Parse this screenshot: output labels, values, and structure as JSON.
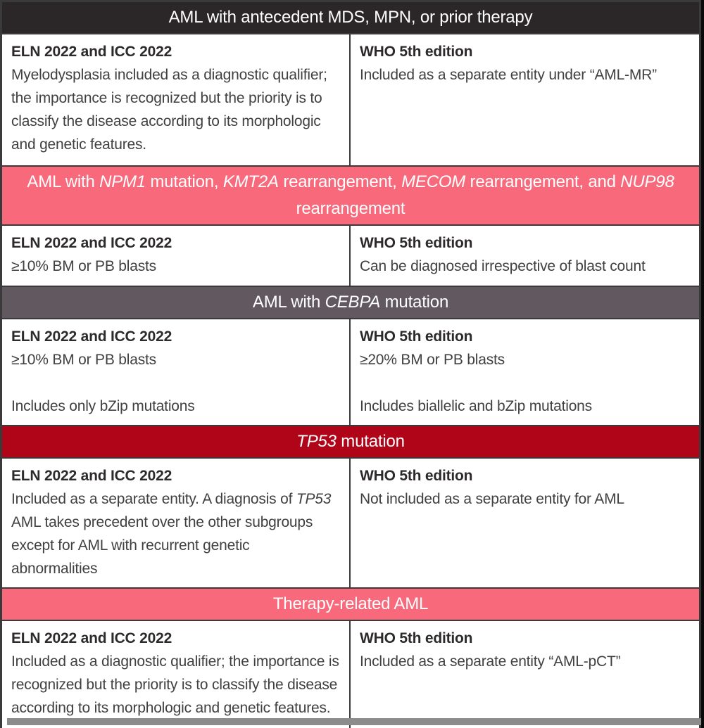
{
  "colors": {
    "dark_header_bg": "#2b2728",
    "pink_header_bg": "#f7697b",
    "mauve_header_bg": "#615860",
    "red_header_bg": "#b00419",
    "border": "#3a3a3a",
    "header_text": "#ffffff",
    "body_text": "#413f40",
    "cell_bg": "#ffffff",
    "shadow": "#8c8c8c"
  },
  "column_headings": {
    "left": "ELN 2022 and ICC 2022",
    "right": "WHO 5th edition"
  },
  "sections": [
    {
      "id": "antecedent-mds-mpn-prior-therapy",
      "theme": "dark",
      "title": [
        {
          "t": "AML with antecedent MDS, MPN, or prior therapy"
        }
      ],
      "left": [
        [
          {
            "t": "Myelodysplasia included as a diagnostic qualifier; the importance is recognized but the priority is to classify the disease according to its morphologic and genetic features."
          }
        ]
      ],
      "right": [
        [
          {
            "t": "Included as a separate entity under “AML-MR”"
          }
        ]
      ]
    },
    {
      "id": "npm1-kmt2a-mecom-nup98",
      "theme": "pink",
      "title": [
        {
          "t": "AML with "
        },
        {
          "t": "NPM1",
          "i": true
        },
        {
          "t": " mutation, "
        },
        {
          "t": "KMT2A",
          "i": true
        },
        {
          "t": " rearrangement, "
        },
        {
          "t": "MECOM",
          "i": true
        },
        {
          "t": " rearrangement, and "
        },
        {
          "t": "NUP98",
          "i": true
        },
        {
          "t": " rearrangement"
        }
      ],
      "left": [
        [
          {
            "t": "≥10% BM or PB blasts"
          }
        ]
      ],
      "right": [
        [
          {
            "t": "Can be diagnosed irrespective of blast count"
          }
        ]
      ]
    },
    {
      "id": "cebpa-mutation",
      "theme": "mauve",
      "title": [
        {
          "t": "AML with "
        },
        {
          "t": "CEBPA",
          "i": true
        },
        {
          "t": " mutation"
        }
      ],
      "left": [
        [
          {
            "t": "≥10% BM or PB blasts"
          }
        ],
        [
          {
            "t": "Includes only bZip mutations"
          }
        ]
      ],
      "right": [
        [
          {
            "t": "≥20% BM or PB blasts"
          }
        ],
        [
          {
            "t": "Includes biallelic and bZip mutations"
          }
        ]
      ]
    },
    {
      "id": "tp53-mutation",
      "theme": "red",
      "title": [
        {
          "t": "TP53",
          "i": true
        },
        {
          "t": " mutation"
        }
      ],
      "left": [
        [
          {
            "t": "Included as a separate entity. A diagnosis of "
          },
          {
            "t": "TP53",
            "i": true
          },
          {
            "t": " AML takes precedent over the other subgroups except for AML with recurrent genetic abnormalities"
          }
        ]
      ],
      "right": [
        [
          {
            "t": "Not included as a separate entity for AML"
          }
        ]
      ]
    },
    {
      "id": "therapy-related-aml",
      "theme": "pink",
      "title": [
        {
          "t": "Therapy-related AML"
        }
      ],
      "left": [
        [
          {
            "t": "Included as a diagnostic qualifier; the importance is recognized but the priority is to classify the disease according to its morphologic and genetic features."
          }
        ]
      ],
      "right": [
        [
          {
            "t": "Included as a separate entity “AML-pCT”"
          }
        ]
      ]
    }
  ]
}
